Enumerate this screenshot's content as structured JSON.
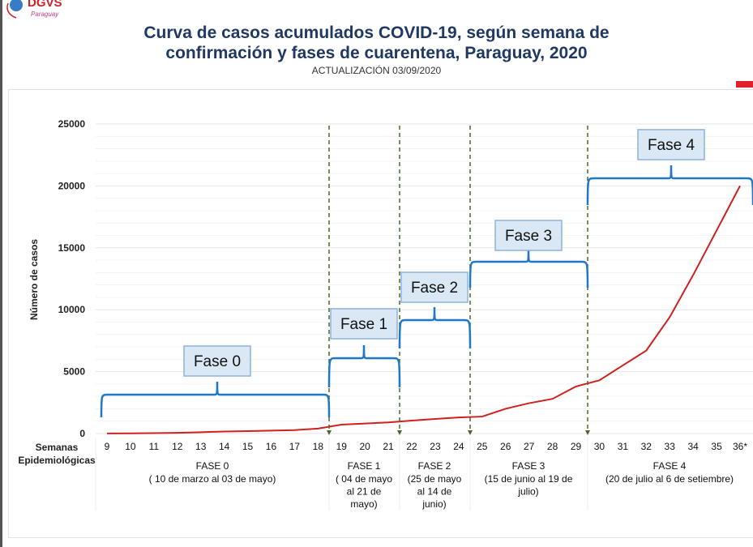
{
  "logo": {
    "text": "DGVS",
    "sub": "Paraguay"
  },
  "title_line1": "Curva de casos acumulados COVID-19, según semana de",
  "title_line2": "confirmación y fases de cuarentena, Paraguay, 2020",
  "subtitle": "ACTUALIZACIÓN 03/09/2020",
  "chart_data": {
    "type": "line",
    "title": "Curva de casos acumulados COVID-19, según semana de confirmación y fases de cuarentena, Paraguay, 2020",
    "ylabel": "Número de casos",
    "xlabel_line1": "Semanas",
    "xlabel_line2": "Epidemiológicas",
    "ylim": [
      0,
      25000
    ],
    "yticks": [
      "0",
      "5000",
      "10000",
      "15000",
      "20000",
      "25000"
    ],
    "grid": true,
    "line_color": "#d02020",
    "bracket_color": "#1f78c8",
    "divider_color": "#4a6a2a",
    "x": [
      "9",
      "10",
      "11",
      "12",
      "13",
      "14",
      "15",
      "16",
      "17",
      "18",
      "19",
      "20",
      "21",
      "22",
      "23",
      "24",
      "25",
      "26",
      "27",
      "28",
      "29",
      "30",
      "31",
      "32",
      "33",
      "34",
      "35",
      "36*"
    ],
    "values": [
      10,
      20,
      30,
      60,
      110,
      160,
      200,
      240,
      280,
      400,
      720,
      810,
      900,
      1050,
      1180,
      1300,
      1370,
      2000,
      2450,
      2800,
      3800,
      4300,
      5500,
      6700,
      9400,
      12800,
      16400,
      20000
    ],
    "phases": [
      {
        "box": "Fase 0",
        "name": "FASE  0",
        "dates": [
          "( 10 de marzo al 03 de mayo)"
        ],
        "weeks": [
          9,
          18
        ]
      },
      {
        "box": "Fase 1",
        "name": "FASE  1",
        "dates": [
          "( 04 de mayo",
          "al 21 de",
          "mayo)"
        ],
        "weeks": [
          19,
          21
        ]
      },
      {
        "box": "Fase 2",
        "name": "FASE  2",
        "dates": [
          "(25 de mayo",
          "al 14 de",
          "junio)"
        ],
        "weeks": [
          22,
          24
        ]
      },
      {
        "box": "Fase 3",
        "name": "FASE  3",
        "dates": [
          "(15 de junio al 19 de",
          "julio)"
        ],
        "weeks": [
          25,
          29
        ]
      },
      {
        "box": "Fase 4",
        "name": "FASE  4",
        "dates": [
          "(20 de julio al 6 de setiembre)"
        ],
        "weeks": [
          30,
          36
        ]
      }
    ]
  }
}
